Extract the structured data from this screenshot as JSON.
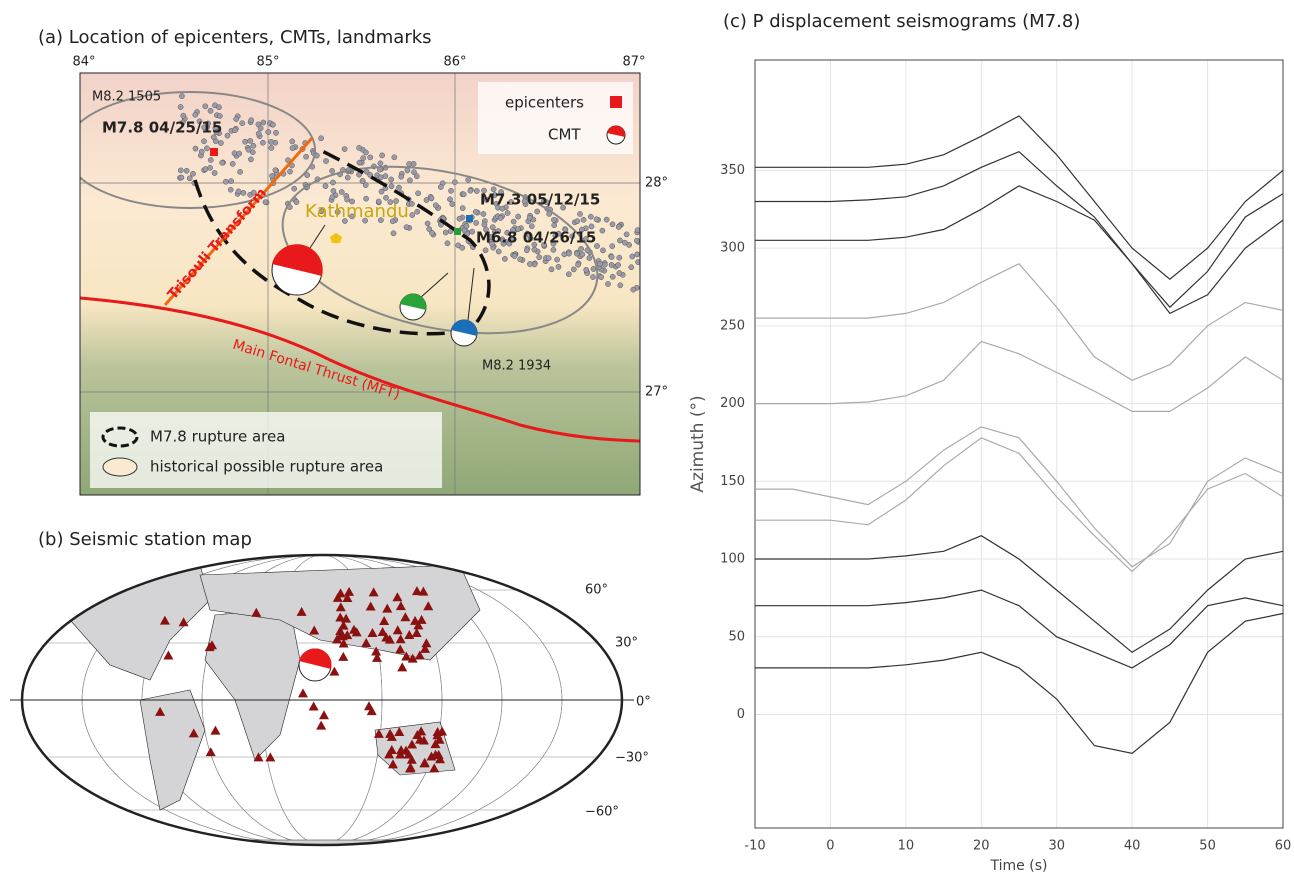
{
  "panel_a": {
    "title": "(a) Location of epicenters, CMTs, landmarks",
    "lon_ticks": [
      "84°",
      "85°",
      "86°",
      "87°"
    ],
    "lat_ticks": [
      "28°",
      "27°"
    ],
    "labels": [
      "M8.2 1505",
      "M7.8 04/25/15",
      "M7.3 05/12/15",
      "Kathmandu",
      "M6.8 04/26/15",
      "Trisouli Transform",
      "Main Fontal Thrust (MFT)",
      "M8.2 1934"
    ],
    "legend": [
      "epicenters",
      "CMT",
      "M7.8 rupture area",
      "historical possible rupture area"
    ]
  },
  "panel_b": {
    "title": "(b) Seismic station map",
    "lat_ticks": [
      "60°",
      "30°",
      "0°",
      "−30°",
      "−60°"
    ]
  },
  "chart_data": {
    "type": "line",
    "title": "(c) P displacement seismograms (M7.8)",
    "xlabel": "Time (s)",
    "ylabel": "Azimuth (°)",
    "xlim": [
      -10,
      60
    ],
    "ylim": [
      -73,
      421
    ],
    "xticks": [
      -10,
      0,
      10,
      20,
      30,
      40,
      50,
      60
    ],
    "yticks": [
      0,
      50,
      100,
      150,
      200,
      250,
      300,
      350
    ],
    "grid": true,
    "x": [
      -10,
      -5,
      0,
      5,
      10,
      15,
      20,
      25,
      30,
      35,
      40,
      45,
      50,
      55,
      60
    ],
    "series": [
      {
        "color": "#333333",
        "values": [
          352,
          352,
          352,
          352,
          354,
          360,
          372,
          385,
          360,
          330,
          300,
          280,
          300,
          330,
          350
        ]
      },
      {
        "color": "#333333",
        "values": [
          330,
          330,
          330,
          331,
          333,
          340,
          352,
          362,
          340,
          320,
          290,
          262,
          285,
          320,
          335
        ]
      },
      {
        "color": "#333333",
        "values": [
          305,
          305,
          305,
          305,
          307,
          312,
          325,
          340,
          330,
          318,
          290,
          258,
          270,
          300,
          318
        ]
      },
      {
        "color": "#aaaaaa",
        "values": [
          255,
          255,
          255,
          255,
          258,
          265,
          278,
          290,
          262,
          230,
          215,
          225,
          250,
          265,
          260
        ]
      },
      {
        "color": "#aaaaaa",
        "values": [
          200,
          200,
          200,
          201,
          205,
          215,
          240,
          232,
          220,
          208,
          195,
          195,
          210,
          230,
          215
        ]
      },
      {
        "color": "#aaaaaa",
        "values": [
          145,
          145,
          140,
          135,
          150,
          170,
          185,
          178,
          150,
          120,
          95,
          110,
          150,
          165,
          155
        ]
      },
      {
        "color": "#aaaaaa",
        "values": [
          125,
          125,
          125,
          122,
          138,
          160,
          178,
          168,
          140,
          115,
          92,
          115,
          145,
          155,
          140
        ]
      },
      {
        "color": "#333333",
        "values": [
          100,
          100,
          100,
          100,
          102,
          105,
          115,
          100,
          80,
          60,
          40,
          55,
          80,
          100,
          105
        ]
      },
      {
        "color": "#333333",
        "values": [
          70,
          70,
          70,
          70,
          72,
          75,
          80,
          70,
          50,
          40,
          30,
          45,
          70,
          75,
          70
        ]
      },
      {
        "color": "#333333",
        "values": [
          30,
          30,
          30,
          30,
          32,
          35,
          40,
          30,
          10,
          -20,
          -25,
          -5,
          40,
          60,
          65
        ]
      }
    ]
  }
}
